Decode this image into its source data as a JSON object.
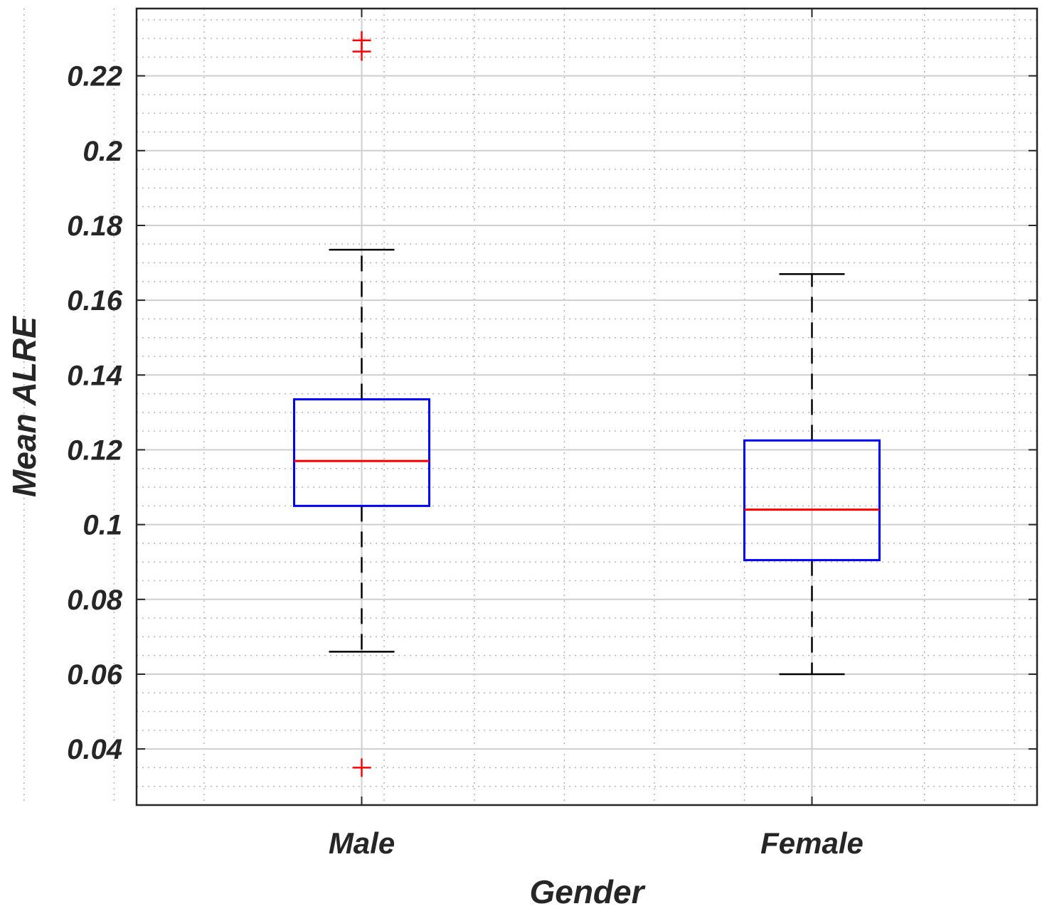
{
  "chart_data": {
    "type": "box",
    "title": "",
    "xlabel": "Gender",
    "ylabel": "Mean ALRE",
    "ylim": [
      0.025,
      0.238
    ],
    "yticks": [
      0.04,
      0.06,
      0.08,
      0.1,
      0.12,
      0.14,
      0.16,
      0.18,
      0.2,
      0.22
    ],
    "ytick_labels": [
      "0.04",
      "0.06",
      "0.08",
      "0.1",
      "0.12",
      "0.14",
      "0.16",
      "0.18",
      "0.2",
      "0.22"
    ],
    "yminor_step": 0.005,
    "x_minor_ticks": [
      0.25,
      0.45,
      0.65,
      1.05,
      1.25,
      1.45,
      1.65,
      1.85,
      2.25,
      2.45
    ],
    "xlim": [
      0.5,
      2.5
    ],
    "grid": true,
    "categories": [
      "Male",
      "Female"
    ],
    "boxes": [
      {
        "name": "Male",
        "whisker_low": 0.066,
        "q1": 0.105,
        "median": 0.117,
        "q3": 0.1335,
        "whisker_high": 0.1735,
        "outliers": [
          0.2295,
          0.2265,
          0.035
        ]
      },
      {
        "name": "Female",
        "whisker_low": 0.06,
        "q1": 0.0905,
        "median": 0.104,
        "q3": 0.1225,
        "whisker_high": 0.167,
        "outliers": []
      }
    ],
    "colors": {
      "box": "#0000ff",
      "median": "#ff0000",
      "whisker": "#000000",
      "outlier": "#ff0000",
      "axes": "#262626",
      "major_grid": "#cfcfcf",
      "minor_grid": "#b5b5b5"
    }
  }
}
